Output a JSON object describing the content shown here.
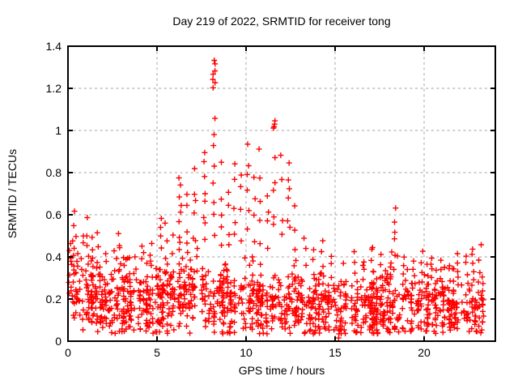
{
  "title": "Day 219 of 2022, SRMTID for receiver tong",
  "axes": {
    "xlabel": "GPS time / hours",
    "ylabel": "SRMTID / TECUs"
  },
  "style": {
    "marker_color": "#ff0000",
    "grid_color": "#a0a0a0",
    "frame_color": "#000000",
    "background": "#ffffff",
    "text_color": "#000000"
  },
  "chart_data": {
    "type": "scatter",
    "title": "Day 219 of 2022, SRMTID for receiver tong",
    "xlabel": "GPS time / hours",
    "ylabel": "SRMTID / TECUs",
    "xlim": [
      0,
      24
    ],
    "ylim": [
      0,
      1.4
    ],
    "xticks": [
      [
        0,
        "0"
      ],
      [
        5,
        "5"
      ],
      [
        10,
        "10"
      ],
      [
        15,
        "15"
      ],
      [
        20,
        "20"
      ]
    ],
    "yticks": [
      [
        0,
        "0"
      ],
      [
        0.2,
        "0.2"
      ],
      [
        0.4,
        "0.4"
      ],
      [
        0.6,
        "0.6"
      ],
      [
        0.8,
        "0.8"
      ],
      [
        1,
        "1"
      ],
      [
        1.2,
        "1.2"
      ],
      [
        1.4,
        "1.4"
      ]
    ],
    "grid": true,
    "grid_style": "dashed",
    "legend": "none",
    "marker": "plus",
    "series_color": "#ff0000",
    "seed": 11,
    "x_data_max": 23.35,
    "baseline_band": {
      "columns": 450,
      "points_per_column_min": 2,
      "points_per_column_max": 4,
      "spread": 0.085,
      "y_min": 0.035,
      "y_max": 0.46,
      "hourly_center": [
        0.21,
        0.19,
        0.18,
        0.18,
        0.18,
        0.19,
        0.22,
        0.23,
        0.21,
        0.2,
        0.2,
        0.19,
        0.18,
        0.16,
        0.16,
        0.15,
        0.16,
        0.16,
        0.17,
        0.17,
        0.18,
        0.17,
        0.17,
        0.16,
        0.16
      ]
    },
    "spike_columns": [
      [
        0.15,
        0.3,
        0.5,
        4
      ],
      [
        0.3,
        0.32,
        0.63,
        6
      ],
      [
        0.5,
        0.3,
        0.52,
        4
      ],
      [
        0.8,
        0.3,
        0.55,
        4
      ],
      [
        1.1,
        0.32,
        0.6,
        5
      ],
      [
        1.35,
        0.3,
        0.52,
        4
      ],
      [
        1.7,
        0.3,
        0.52,
        4
      ],
      [
        2.1,
        0.28,
        0.45,
        3
      ],
      [
        2.6,
        0.28,
        0.44,
        3
      ],
      [
        2.9,
        0.3,
        0.52,
        4
      ],
      [
        3.3,
        0.28,
        0.45,
        3
      ],
      [
        3.8,
        0.28,
        0.44,
        3
      ],
      [
        4.2,
        0.28,
        0.46,
        3
      ],
      [
        4.65,
        0.3,
        0.5,
        3
      ],
      [
        5.2,
        0.33,
        0.63,
        5
      ],
      [
        5.5,
        0.32,
        0.58,
        4
      ],
      [
        5.9,
        0.3,
        0.55,
        3
      ],
      [
        6.3,
        0.36,
        0.8,
        10
      ],
      [
        6.65,
        0.38,
        0.72,
        5
      ],
      [
        7.1,
        0.42,
        0.83,
        6
      ],
      [
        7.65,
        0.45,
        0.93,
        8
      ],
      [
        8.2,
        0.5,
        1.1,
        8
      ],
      [
        8.2,
        1.2,
        1.34,
        7
      ],
      [
        8.6,
        0.45,
        0.88,
        4
      ],
      [
        9.0,
        0.4,
        0.75,
        4
      ],
      [
        9.35,
        0.45,
        0.88,
        5
      ],
      [
        9.7,
        0.45,
        0.9,
        4
      ],
      [
        10.1,
        0.5,
        0.97,
        6
      ],
      [
        10.5,
        0.45,
        0.85,
        4
      ],
      [
        10.8,
        0.45,
        0.93,
        5
      ],
      [
        11.2,
        0.4,
        0.78,
        4
      ],
      [
        11.6,
        0.5,
        0.9,
        5
      ],
      [
        11.6,
        1.0,
        1.06,
        4
      ],
      [
        12.0,
        0.45,
        0.9,
        4
      ],
      [
        12.4,
        0.5,
        0.89,
        6
      ],
      [
        12.8,
        0.35,
        0.65,
        4
      ],
      [
        13.3,
        0.3,
        0.55,
        3
      ],
      [
        13.8,
        0.28,
        0.5,
        3
      ],
      [
        14.3,
        0.28,
        0.52,
        4
      ],
      [
        14.8,
        0.28,
        0.45,
        3
      ],
      [
        15.5,
        0.25,
        0.4,
        2
      ],
      [
        16.1,
        0.27,
        0.46,
        3
      ],
      [
        16.6,
        0.27,
        0.42,
        3
      ],
      [
        17.1,
        0.27,
        0.47,
        3
      ],
      [
        17.6,
        0.27,
        0.42,
        3
      ],
      [
        18.35,
        0.33,
        0.66,
        6
      ],
      [
        18.9,
        0.28,
        0.45,
        3
      ],
      [
        19.4,
        0.28,
        0.42,
        3
      ],
      [
        19.9,
        0.28,
        0.44,
        3
      ],
      [
        20.4,
        0.28,
        0.42,
        4
      ],
      [
        20.9,
        0.27,
        0.4,
        3
      ],
      [
        21.4,
        0.27,
        0.4,
        3
      ],
      [
        21.9,
        0.28,
        0.42,
        4
      ],
      [
        22.4,
        0.28,
        0.44,
        3
      ],
      [
        22.75,
        0.28,
        0.47,
        4
      ],
      [
        23.1,
        0.27,
        0.42,
        3
      ]
    ],
    "outlier_points": [
      [
        15.2,
        0.015
      ],
      [
        15.22,
        0.035
      ]
    ],
    "notable_features": {
      "max_point": [
        8.2,
        1.33
      ],
      "secondary_peaks": [
        [
          11.6,
          1.05
        ],
        [
          10.1,
          0.97
        ],
        [
          7.65,
          0.93
        ],
        [
          18.35,
          0.66
        ]
      ],
      "isolated_low_point": [
        15.2,
        0.02
      ]
    }
  }
}
